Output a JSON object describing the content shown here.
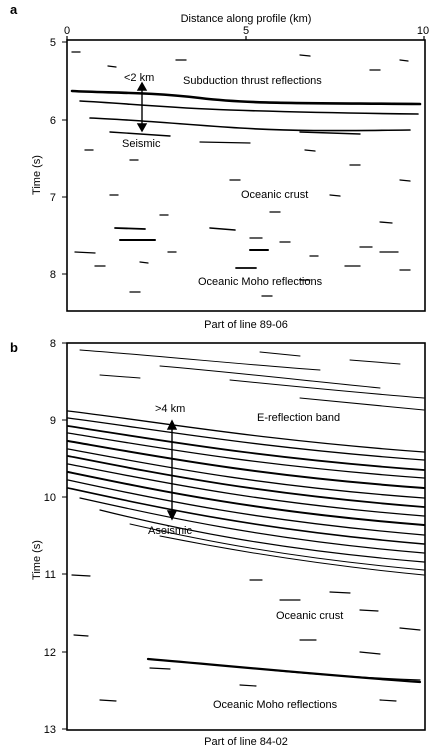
{
  "panels": [
    {
      "letter": "a",
      "top_axis_label": "Distance along profile (km)",
      "x_ticks": [
        "0",
        "5",
        "10"
      ],
      "y_label": "Time (s)",
      "y_ticks": [
        "5",
        "6",
        "7",
        "8"
      ],
      "caption": "Part of line 89-06",
      "annotations": {
        "scale": "<2 km",
        "thrust": "Subduction thrust reflections",
        "seismic": "Seismic",
        "crust": "Oceanic crust",
        "moho": "Oceanic Moho reflections"
      }
    },
    {
      "letter": "b",
      "y_label": "Time (s)",
      "y_ticks": [
        "8",
        "9",
        "10",
        "11",
        "12",
        "13"
      ],
      "caption": "Part of line 84-02",
      "annotations": {
        "scale": ">4 km",
        "band": "E-reflection band",
        "aseismic": "Aseismic",
        "crust": "Oceanic crust",
        "moho": "Oceanic Moho reflections"
      }
    }
  ],
  "chart_data": [
    {
      "type": "scatter",
      "title": "",
      "xlabel": "Distance along profile (km)",
      "ylabel": "Time (s)",
      "xlim": [
        0,
        10
      ],
      "ylim": [
        5,
        8.5
      ],
      "y_inverted": true,
      "series": [
        {
          "values": [
            [
              0.3,
              5.68
            ],
            [
              1.5,
              5.72
            ],
            [
              2.6,
              5.78
            ],
            [
              3.7,
              5.83
            ],
            [
              4.8,
              5.85
            ],
            [
              5.9,
              5.86
            ],
            [
              7.0,
              5.88
            ],
            [
              8.1,
              5.9
            ],
            [
              9.2,
              5.92
            ]
          ]
        },
        {
          "values": [
            [
              0.5,
              5.95
            ],
            [
              1.6,
              5.98
            ],
            [
              2.8,
              6.02
            ],
            [
              4.0,
              6.05
            ],
            [
              5.2,
              6.05
            ],
            [
              6.4,
              6.04
            ],
            [
              7.6,
              6.06
            ],
            [
              8.8,
              6.1
            ]
          ]
        },
        {
          "values": [
            [
              1.0,
              5.52
            ],
            [
              4.5,
              5.6
            ],
            [
              5.5,
              6.55
            ],
            [
              7.4,
              7.0
            ],
            [
              3.0,
              7.35
            ],
            [
              5.4,
              7.45
            ],
            [
              6.1,
              7.6
            ],
            [
              3.3,
              7.8
            ],
            [
              7.1,
              7.85
            ],
            [
              6.5,
              8.0
            ],
            [
              8.2,
              8.1
            ]
          ]
        }
      ]
    },
    {
      "type": "scatter",
      "title": "",
      "xlabel": "",
      "ylabel": "Time (s)",
      "xlim": [
        0,
        10
      ],
      "ylim": [
        8,
        13
      ],
      "y_inverted": true,
      "series": [
        {
          "values": [
            [
              0.0,
              8.9
            ],
            [
              2.5,
              9.1
            ],
            [
              5.0,
              9.3
            ],
            [
              7.5,
              9.5
            ],
            [
              10.0,
              9.6
            ]
          ]
        },
        {
          "values": [
            [
              0.0,
              9.3
            ],
            [
              2.5,
              9.55
            ],
            [
              5.0,
              9.8
            ],
            [
              7.5,
              10.0
            ],
            [
              10.0,
              10.2
            ]
          ]
        },
        {
          "values": [
            [
              0.0,
              9.8
            ],
            [
              2.5,
              10.1
            ],
            [
              5.0,
              10.4
            ],
            [
              7.5,
              10.6
            ],
            [
              10.0,
              10.8
            ]
          ]
        },
        {
          "values": [
            [
              2.0,
              12.0
            ],
            [
              5.0,
              12.2
            ],
            [
              8.0,
              12.35
            ],
            [
              10.0,
              12.4
            ]
          ]
        }
      ]
    }
  ]
}
